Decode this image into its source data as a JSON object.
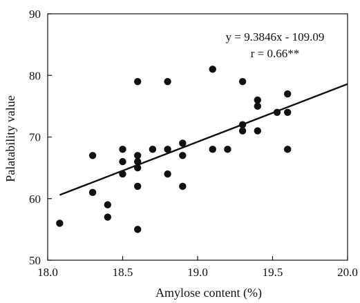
{
  "chart_data": {
    "type": "scatter",
    "title": "",
    "xlabel": "Amylose content (%)",
    "ylabel": "Palatability value",
    "xlim": [
      18.0,
      20.0
    ],
    "ylim": [
      50,
      90
    ],
    "xticks": [
      "18.0",
      "18.5",
      "19.0",
      "19.5",
      "20.0"
    ],
    "yticks": [
      "50",
      "60",
      "70",
      "80",
      "90"
    ],
    "grid": false,
    "legend": "none",
    "points": [
      {
        "x": 18.08,
        "y": 56
      },
      {
        "x": 18.3,
        "y": 67
      },
      {
        "x": 18.3,
        "y": 61
      },
      {
        "x": 18.4,
        "y": 59
      },
      {
        "x": 18.4,
        "y": 57
      },
      {
        "x": 18.5,
        "y": 68
      },
      {
        "x": 18.5,
        "y": 66
      },
      {
        "x": 18.5,
        "y": 64
      },
      {
        "x": 18.6,
        "y": 79
      },
      {
        "x": 18.6,
        "y": 67
      },
      {
        "x": 18.6,
        "y": 66
      },
      {
        "x": 18.6,
        "y": 65
      },
      {
        "x": 18.6,
        "y": 62
      },
      {
        "x": 18.6,
        "y": 55
      },
      {
        "x": 18.7,
        "y": 68
      },
      {
        "x": 18.8,
        "y": 79
      },
      {
        "x": 18.8,
        "y": 68
      },
      {
        "x": 18.8,
        "y": 64
      },
      {
        "x": 18.9,
        "y": 69
      },
      {
        "x": 18.9,
        "y": 67
      },
      {
        "x": 18.9,
        "y": 62
      },
      {
        "x": 19.1,
        "y": 81
      },
      {
        "x": 19.1,
        "y": 68
      },
      {
        "x": 19.2,
        "y": 68
      },
      {
        "x": 19.3,
        "y": 79
      },
      {
        "x": 19.3,
        "y": 72
      },
      {
        "x": 19.3,
        "y": 71
      },
      {
        "x": 19.4,
        "y": 76
      },
      {
        "x": 19.4,
        "y": 75
      },
      {
        "x": 19.4,
        "y": 71
      },
      {
        "x": 19.53,
        "y": 74
      },
      {
        "x": 19.6,
        "y": 77
      },
      {
        "x": 19.6,
        "y": 74
      },
      {
        "x": 19.6,
        "y": 68
      }
    ],
    "trendline": {
      "slope": 9.3846,
      "intercept": -109.09,
      "x_start": 18.08,
      "x_end": 20.0
    },
    "annotations": {
      "equation": "y = 9.3846x - 109.09",
      "correlation": "r = 0.66**"
    }
  }
}
